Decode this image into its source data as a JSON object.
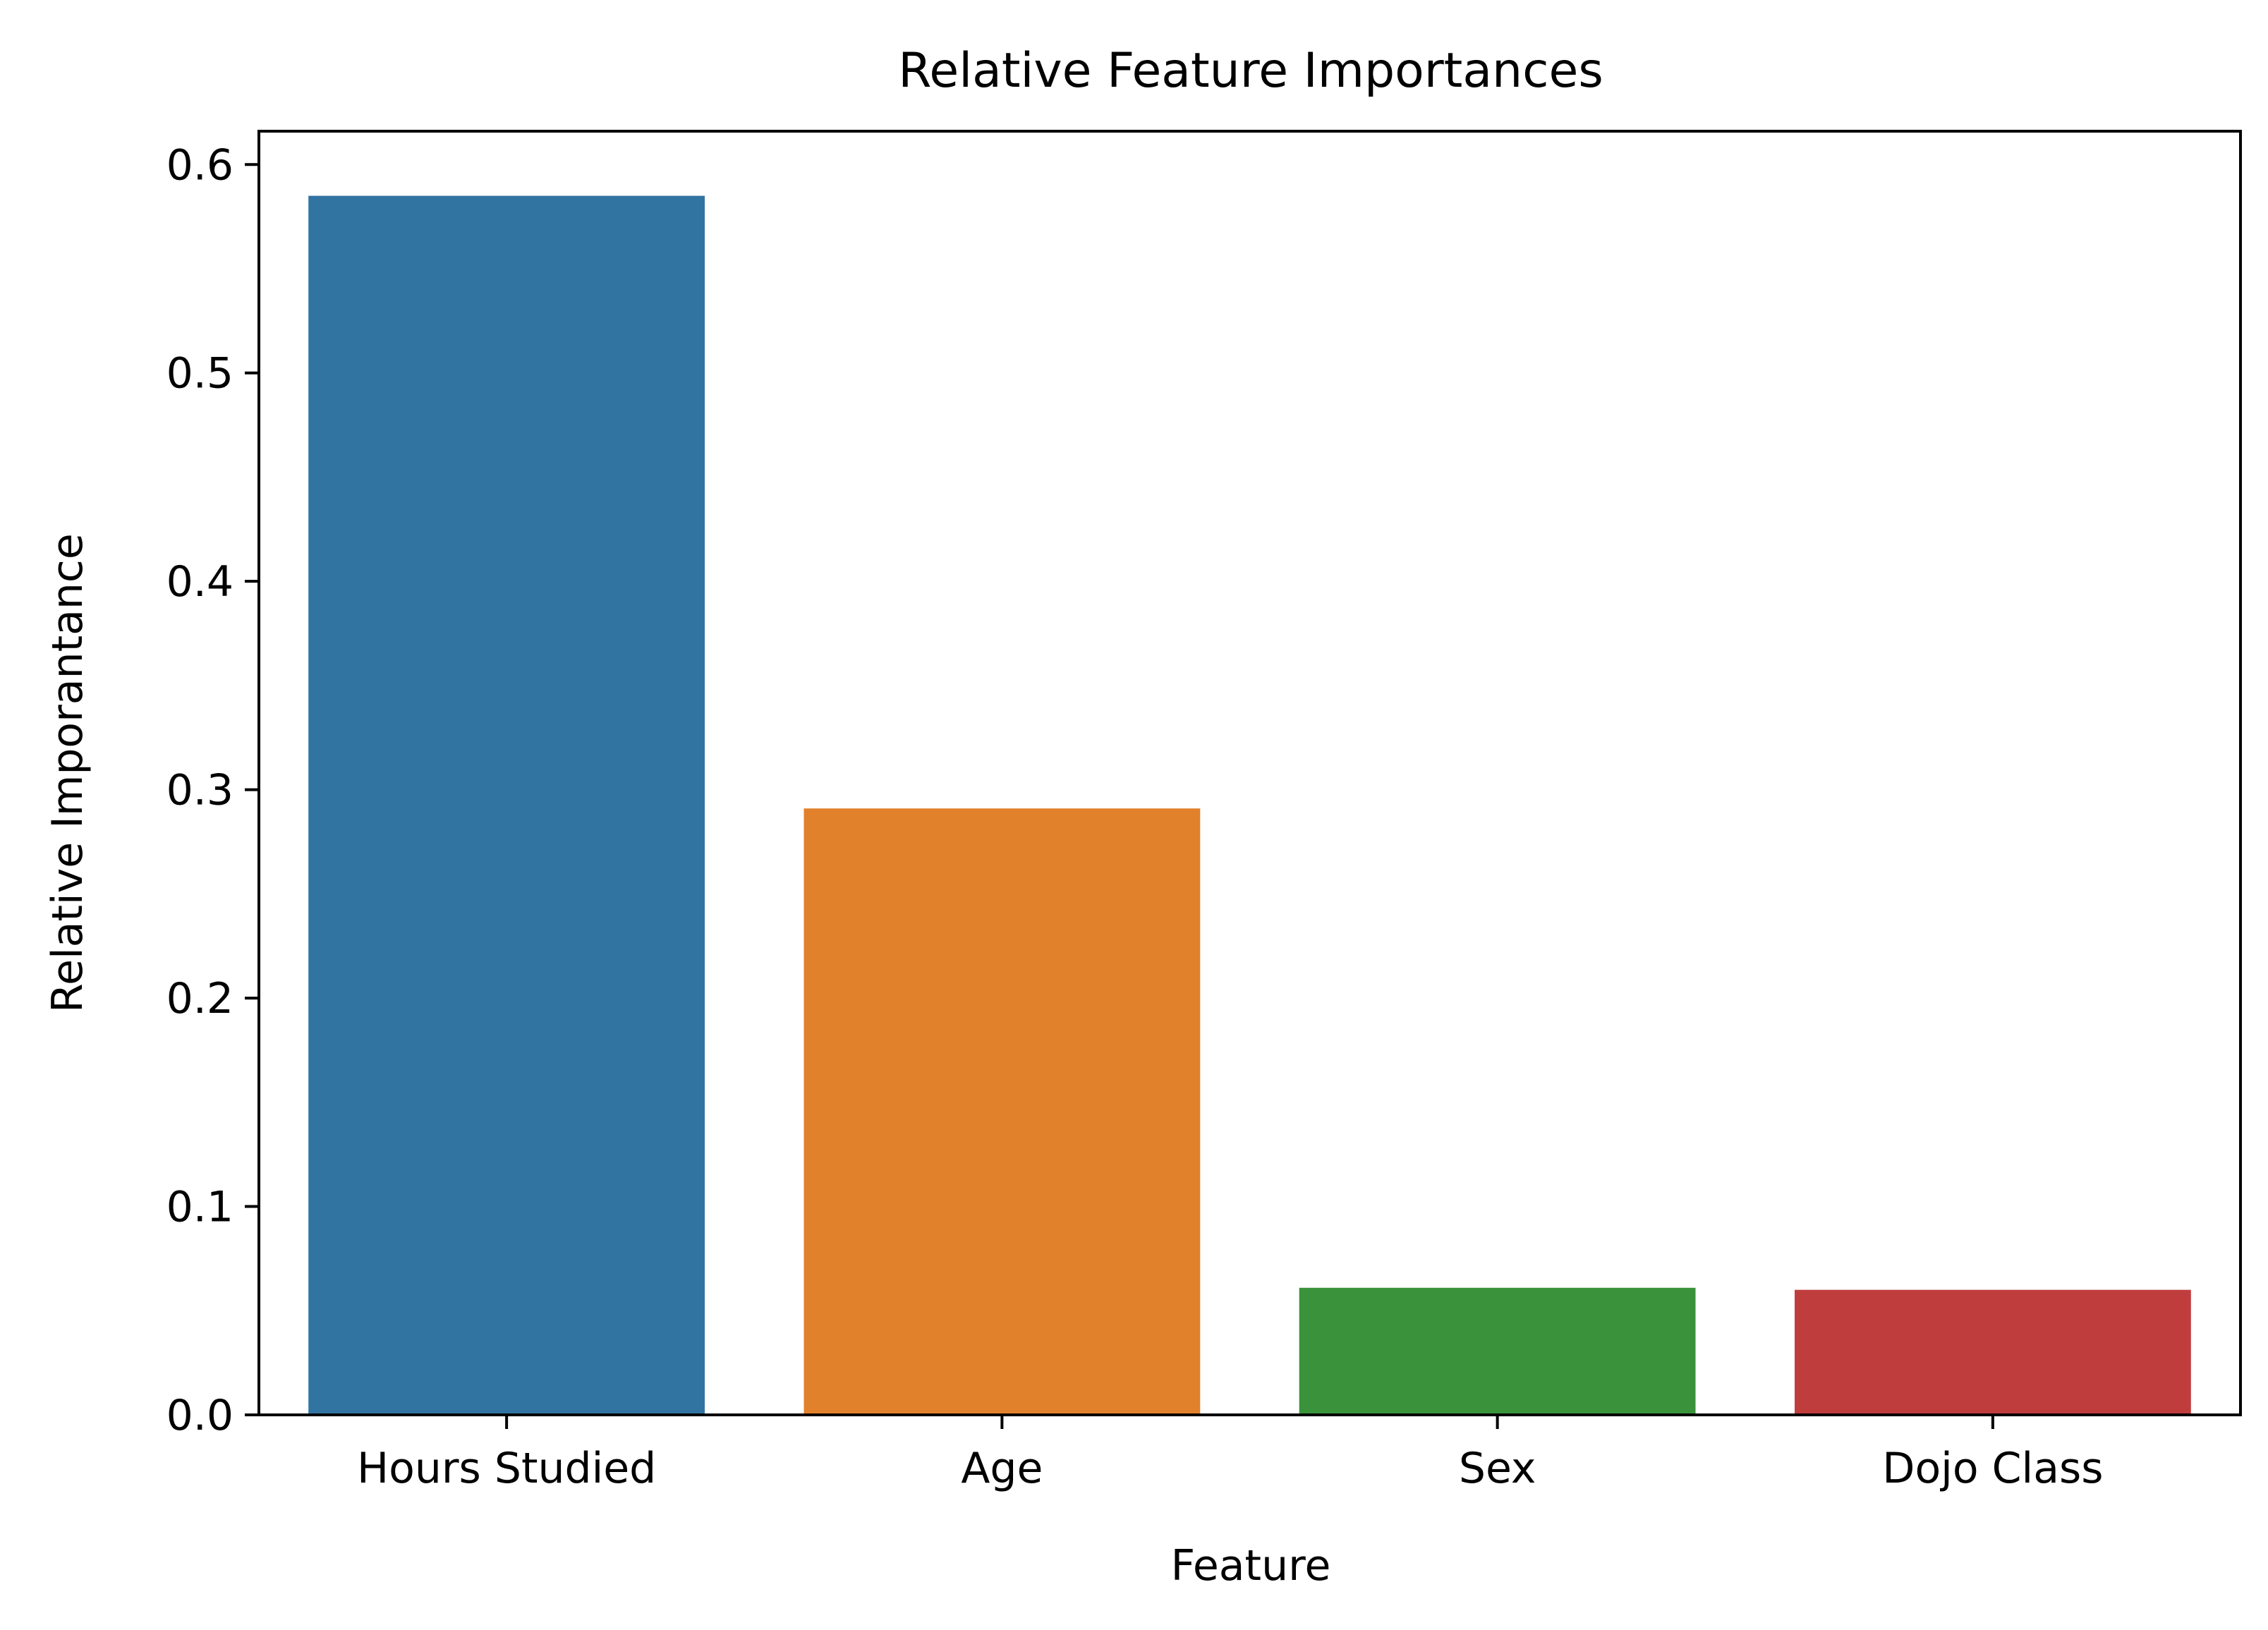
{
  "chart_data": {
    "type": "bar",
    "title": "Relative Feature Importances",
    "xlabel": "Feature",
    "ylabel": "Relative Imporantance",
    "categories": [
      "Hours Studied",
      "Age",
      "Sex",
      "Dojo Class"
    ],
    "values": [
      0.585,
      0.291,
      0.061,
      0.06
    ],
    "colors": [
      "#3274a1",
      "#e1812c",
      "#3a923a",
      "#c03d3e"
    ],
    "ylim": [
      0.0,
      0.616
    ],
    "yticks": [
      0.0,
      0.1,
      0.2,
      0.3,
      0.4,
      0.5,
      0.6
    ],
    "ytick_labels": [
      "0.0",
      "0.1",
      "0.2",
      "0.3",
      "0.4",
      "0.5",
      "0.6"
    ],
    "grid": false,
    "legend": "none"
  }
}
